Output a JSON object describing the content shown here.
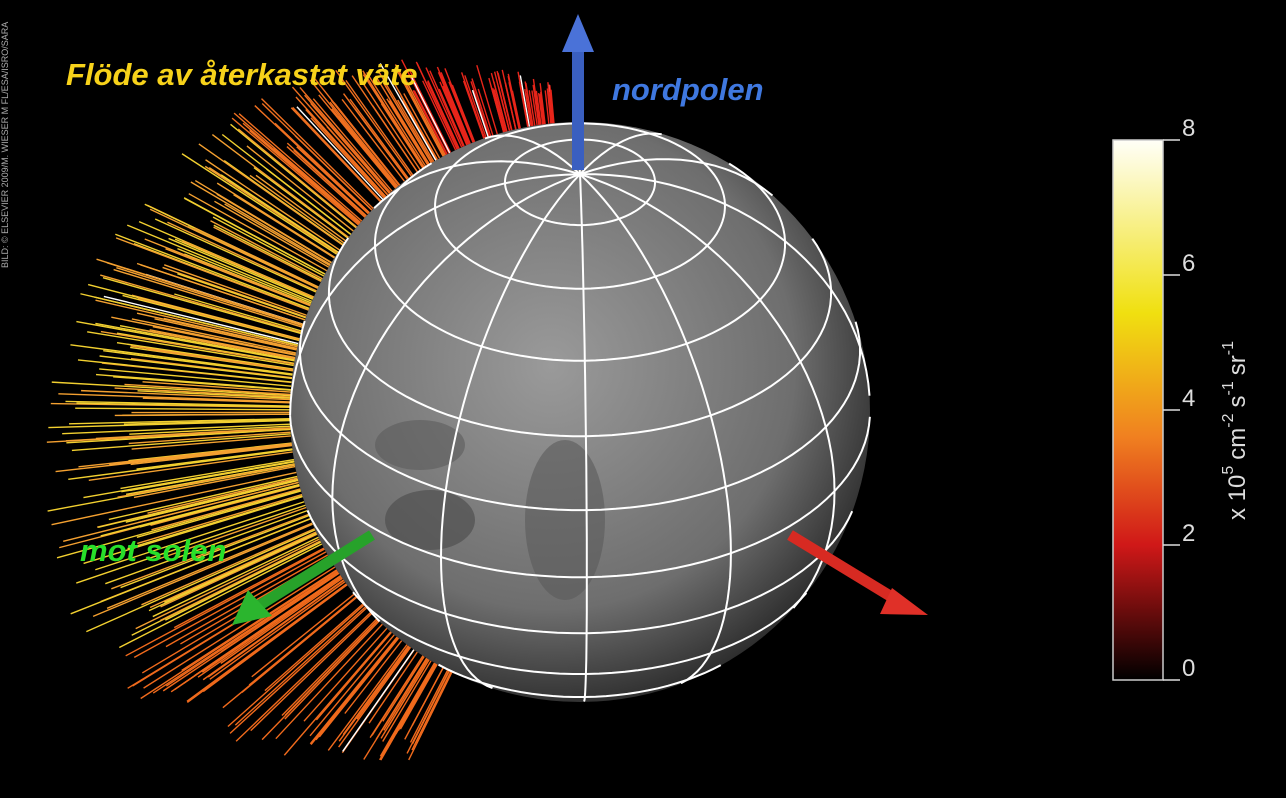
{
  "title": "Flöde av återkastat väte",
  "labels": {
    "north": "nordpolen",
    "sun": "mot solen"
  },
  "credit": "BILD: © ELSEVIER 2009/M. WIESER M FL/ESA/ISRO/SARA",
  "colorbar": {
    "ylim": [
      0,
      8
    ],
    "yticks": [
      0,
      2,
      4,
      6,
      8
    ],
    "unit_parts": [
      [
        "x 10",
        "5"
      ],
      [
        "cm",
        "-2"
      ],
      [
        "s",
        "-1"
      ],
      [
        "sr",
        "-1"
      ]
    ]
  }
}
